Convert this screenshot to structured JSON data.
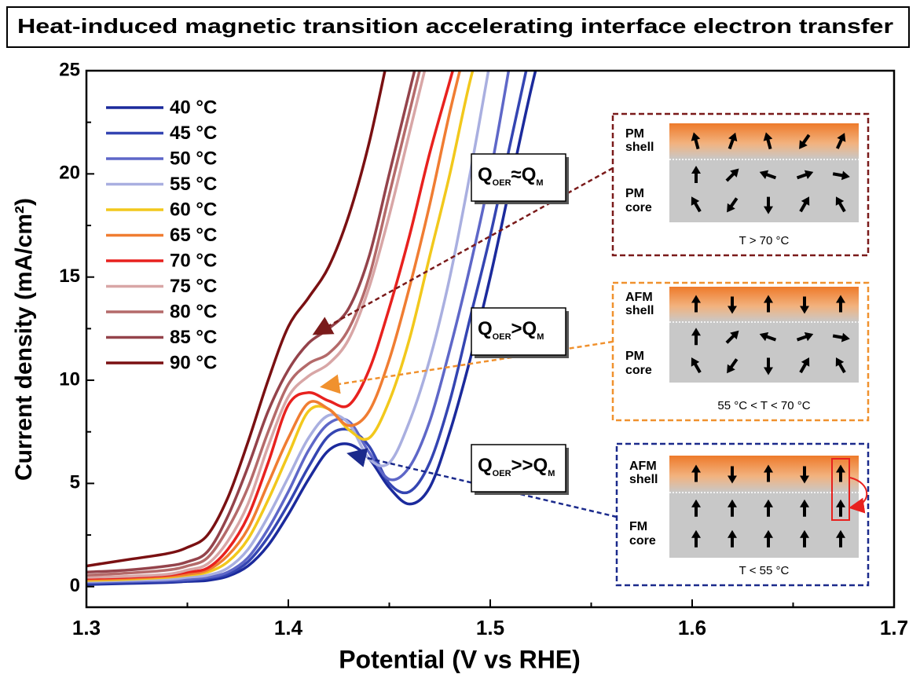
{
  "chart_data": {
    "type": "line",
    "title": "Heat-induced magnetic transition accelerating interface electron transfer",
    "x_label": "Potential (V vs RHE)",
    "y_label": "Current density (mA/cm²)",
    "xlim": [
      1.3,
      1.7
    ],
    "ylim": [
      -1,
      25
    ],
    "xticks": [
      1.3,
      1.4,
      1.5,
      1.6,
      1.7
    ],
    "yticks": [
      0,
      5,
      10,
      15,
      20,
      25
    ],
    "xminorticks": [
      1.35,
      1.45,
      1.55,
      1.65
    ],
    "yminorticks": [
      2.5,
      7.5,
      12.5,
      17.5,
      22.5
    ],
    "legend": "upper left",
    "x": [
      1.3,
      1.32,
      1.34,
      1.35,
      1.36,
      1.37,
      1.38,
      1.39,
      1.4,
      1.41,
      1.42,
      1.43,
      1.44,
      1.45,
      1.46,
      1.47,
      1.48,
      1.49,
      1.5,
      1.51,
      1.52,
      1.53
    ],
    "series": [
      {
        "name": "40 °C",
        "color": "#1b2a9c",
        "values": [
          0.1,
          0.15,
          0.2,
          0.25,
          0.3,
          0.5,
          1.0,
          2.0,
          3.5,
          5.2,
          6.6,
          6.9,
          6.2,
          4.8,
          4.0,
          4.8,
          7.5,
          11,
          15,
          19.5,
          24,
          28
        ]
      },
      {
        "name": "45 °C",
        "color": "#3445b2",
        "values": [
          0.15,
          0.2,
          0.25,
          0.3,
          0.4,
          0.6,
          1.2,
          2.4,
          4.0,
          5.8,
          7.3,
          7.6,
          6.8,
          5.0,
          4.6,
          6.0,
          9.0,
          13,
          17,
          21.5,
          26,
          null
        ]
      },
      {
        "name": "50 °C",
        "color": "#5e67c8",
        "values": [
          0.2,
          0.25,
          0.3,
          0.35,
          0.45,
          0.7,
          1.4,
          2.8,
          4.6,
          6.6,
          7.9,
          8.0,
          6.5,
          5.2,
          5.8,
          8.0,
          11.5,
          15.5,
          20,
          25.5,
          null,
          null
        ]
      },
      {
        "name": "55 °C",
        "color": "#a9afe0",
        "values": [
          0.25,
          0.3,
          0.35,
          0.45,
          0.55,
          0.9,
          1.8,
          3.4,
          5.3,
          7.2,
          8.3,
          7.9,
          6.2,
          6.0,
          8.0,
          11,
          15,
          20,
          25.5,
          null,
          null,
          null
        ]
      },
      {
        "name": "60 °C",
        "color": "#f2c81c",
        "values": [
          0.3,
          0.35,
          0.45,
          0.55,
          0.7,
          1.2,
          2.3,
          4.2,
          6.4,
          8.5,
          8.6,
          7.6,
          7.2,
          9.0,
          12,
          16,
          20,
          24.5,
          28,
          null,
          null,
          null
        ]
      },
      {
        "name": "65 °C",
        "color": "#f07d32",
        "values": [
          0.35,
          0.4,
          0.5,
          0.6,
          0.8,
          1.5,
          2.8,
          5.0,
          7.2,
          8.9,
          8.6,
          7.8,
          8.5,
          11,
          14.5,
          18.5,
          23,
          27,
          null,
          null,
          null,
          null
        ]
      },
      {
        "name": "70 °C",
        "color": "#e8211e",
        "values": [
          0.4,
          0.45,
          0.55,
          0.7,
          0.9,
          1.8,
          3.4,
          6.0,
          8.8,
          9.4,
          9.0,
          8.8,
          10.5,
          13.5,
          17,
          21,
          24.5,
          28,
          null,
          null,
          null,
          null
        ]
      },
      {
        "name": "75 °C",
        "color": "#d8a6a6",
        "values": [
          0.45,
          0.5,
          0.6,
          0.8,
          1.1,
          2.2,
          4.0,
          6.8,
          9.2,
          10.2,
          10.8,
          12,
          14.5,
          18,
          22,
          26,
          null,
          null,
          null,
          null,
          null,
          null
        ]
      },
      {
        "name": "80 °C",
        "color": "#b46a6a",
        "values": [
          0.55,
          0.65,
          0.8,
          1.0,
          1.4,
          2.8,
          4.8,
          7.5,
          9.8,
          10.8,
          11.3,
          12.5,
          15,
          19,
          23,
          27,
          null,
          null,
          null,
          null,
          null,
          null
        ]
      },
      {
        "name": "85 °C",
        "color": "#94434b",
        "values": [
          0.7,
          0.8,
          1.0,
          1.2,
          1.7,
          3.4,
          5.8,
          8.5,
          10.5,
          11.8,
          12.5,
          13.5,
          16,
          20,
          24,
          28,
          null,
          null,
          null,
          null,
          null,
          null
        ]
      },
      {
        "name": "90 °C",
        "color": "#7a1012",
        "values": [
          1.0,
          1.3,
          1.6,
          1.9,
          2.5,
          4.3,
          7.0,
          10,
          12.6,
          14,
          15.5,
          18,
          21.5,
          26,
          null,
          null,
          null,
          null,
          null,
          null,
          null,
          null
        ]
      }
    ],
    "annotations": [
      {
        "q1": "Q",
        "s1": "OER",
        "rel": "≈",
        "q2": "Q",
        "s2": "M"
      },
      {
        "q1": "Q",
        "s1": "OER",
        "rel": ">",
        "q2": "Q",
        "s2": "M"
      },
      {
        "q1": "Q",
        "s1": "OER",
        "rel": ">>",
        "q2": "Q",
        "s2": "M"
      }
    ],
    "insets": [
      {
        "shell": [
          "PM",
          "shell"
        ],
        "core": [
          "PM",
          "core"
        ],
        "temperature": "T > 70 °C",
        "color": "#7a1a1a"
      },
      {
        "shell": [
          "AFM",
          "shell"
        ],
        "core": [
          "PM",
          "core"
        ],
        "temperature": "55 °C < T < 70 °C",
        "color": "#f0912e"
      },
      {
        "shell": [
          "AFM",
          "shell"
        ],
        "core": [
          "FM",
          "core"
        ],
        "temperature": "T < 55 °C",
        "color": "#1b2a8c"
      }
    ]
  }
}
